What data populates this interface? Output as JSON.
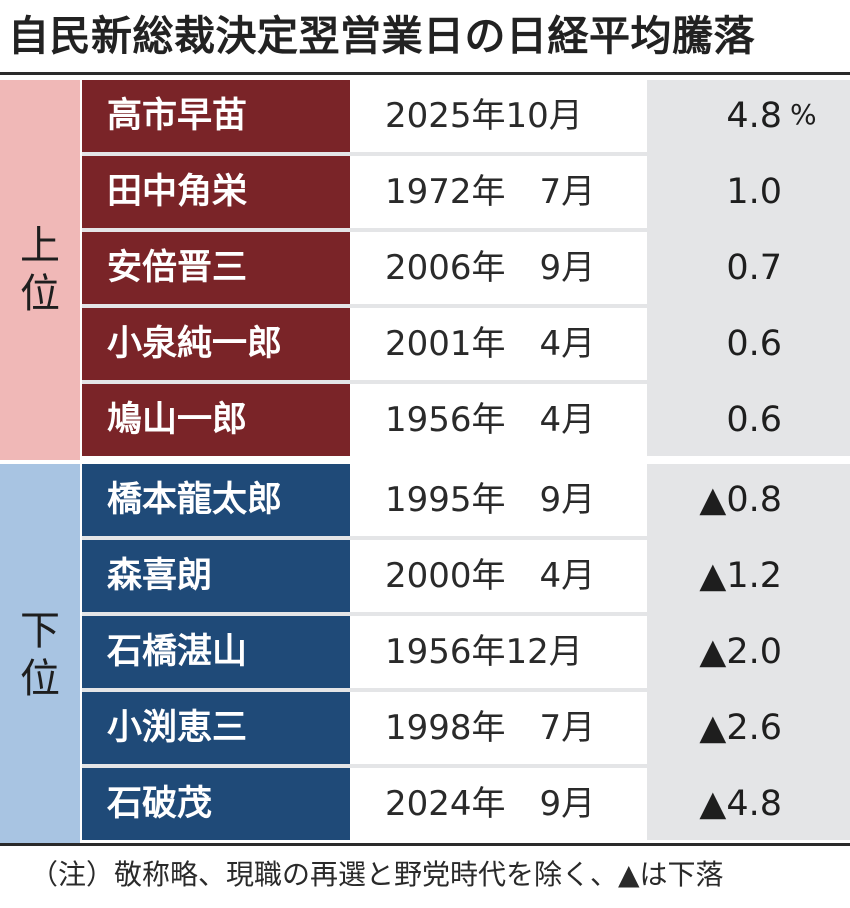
{
  "title": "自民新総裁決定翌営業日の日経平均騰落",
  "groups": {
    "upper_label_1": "上",
    "upper_label_2": "位",
    "lower_label_1": "下",
    "lower_label_2": "位"
  },
  "unit": "%",
  "rows": [
    {
      "name": "高市早苗",
      "date": "2025年10月",
      "value": "4.8",
      "group": "upper"
    },
    {
      "name": "田中角栄",
      "date": "1972年　7月",
      "value": "1.0",
      "group": "upper"
    },
    {
      "name": "安倍晋三",
      "date": "2006年　9月",
      "value": "0.7",
      "group": "upper"
    },
    {
      "name": "小泉純一郎",
      "date": "2001年　4月",
      "value": "0.6",
      "group": "upper"
    },
    {
      "name": "鳩山一郎",
      "date": "1956年　4月",
      "value": "0.6",
      "group": "upper"
    },
    {
      "name": "橋本龍太郎",
      "date": "1995年　9月",
      "value": "▲0.8",
      "group": "lower"
    },
    {
      "name": "森喜朗",
      "date": "2000年　4月",
      "value": "▲1.2",
      "group": "lower"
    },
    {
      "name": "石橋湛山",
      "date": "1956年12月",
      "value": "▲2.0",
      "group": "lower"
    },
    {
      "name": "小渕恵三",
      "date": "1998年　7月",
      "value": "▲2.6",
      "group": "lower"
    },
    {
      "name": "石破茂",
      "date": "2024年　9月",
      "value": "▲4.8",
      "group": "lower"
    }
  ],
  "note": "（注）敬称略、現職の再選と野党時代を除く、▲は下落",
  "colors": {
    "upper_label_bg": "#f0b8b7",
    "lower_label_bg": "#a8c4e2",
    "upper_name_bg": "#7a2428",
    "lower_name_bg": "#1f4a78",
    "value_bg": "#e4e5e7"
  }
}
